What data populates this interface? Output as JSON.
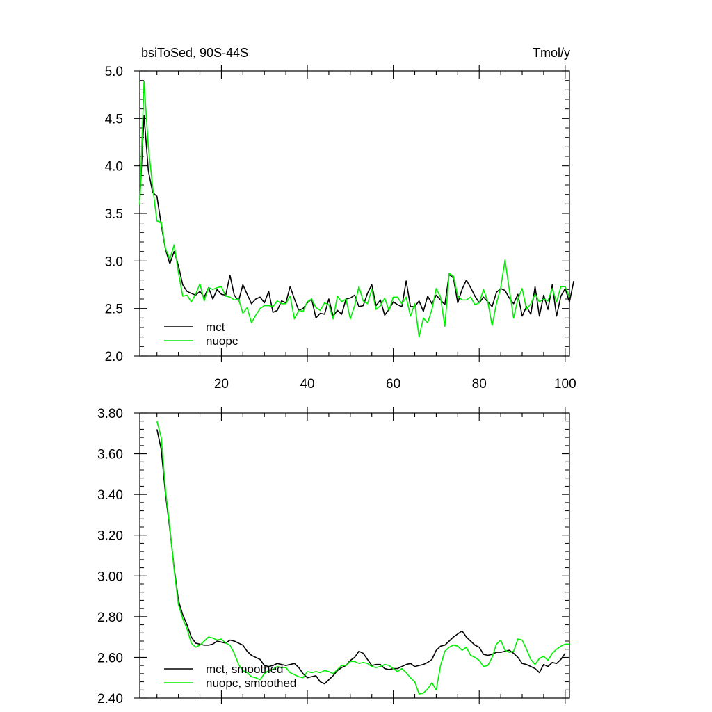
{
  "chart_data": [
    {
      "type": "line",
      "title": "bsiToSed, 90S-44S",
      "units": "Tmol/y",
      "xlim": [
        1,
        101
      ],
      "ylim": [
        2.0,
        5.0
      ],
      "x_ticks": [
        20,
        40,
        60,
        80,
        100
      ],
      "y_ticks": [
        "2.0",
        "2.5",
        "3.0",
        "3.5",
        "4.0",
        "4.5",
        "5.0"
      ],
      "legend_position": "bottom-left",
      "series": [
        {
          "name": "mct",
          "color": "#000000",
          "x_start": 1,
          "values": [
            3.64,
            4.53,
            3.95,
            3.72,
            3.68,
            3.38,
            3.12,
            2.97,
            3.1,
            2.95,
            2.75,
            2.68,
            2.66,
            2.64,
            2.68,
            2.62,
            2.72,
            2.6,
            2.7,
            2.65,
            2.64,
            2.85,
            2.64,
            2.58,
            2.75,
            2.65,
            2.55,
            2.6,
            2.62,
            2.56,
            2.68,
            2.46,
            2.48,
            2.58,
            2.56,
            2.73,
            2.6,
            2.48,
            2.5,
            2.56,
            2.6,
            2.4,
            2.45,
            2.44,
            2.6,
            2.42,
            2.48,
            2.44,
            2.6,
            2.61,
            2.64,
            2.52,
            2.53,
            2.66,
            2.75,
            2.53,
            2.59,
            2.43,
            2.49,
            2.57,
            2.54,
            2.52,
            2.79,
            2.52,
            2.52,
            2.58,
            2.47,
            2.63,
            2.55,
            2.64,
            2.59,
            2.54,
            2.86,
            2.82,
            2.56,
            2.7,
            2.8,
            2.72,
            2.63,
            2.56,
            2.62,
            2.57,
            2.52,
            2.67,
            2.71,
            2.69,
            2.61,
            2.55,
            2.65,
            2.42,
            2.52,
            2.44,
            2.73,
            2.42,
            2.64,
            2.49,
            2.75,
            2.42,
            2.63,
            2.71,
            2.57,
            2.79
          ]
        },
        {
          "name": "nuopc",
          "color": "#00ee00",
          "x_start": 1,
          "values": [
            3.59,
            4.89,
            4.2,
            3.78,
            3.42,
            3.41,
            3.13,
            3.02,
            3.17,
            2.88,
            2.63,
            2.64,
            2.57,
            2.65,
            2.76,
            2.58,
            2.72,
            2.7,
            2.72,
            2.73,
            2.63,
            2.62,
            2.59,
            2.6,
            2.45,
            2.51,
            2.35,
            2.43,
            2.5,
            2.53,
            2.53,
            2.52,
            2.58,
            2.55,
            2.55,
            2.63,
            2.39,
            2.48,
            2.47,
            2.57,
            2.6,
            2.51,
            2.48,
            2.56,
            2.54,
            2.39,
            2.63,
            2.57,
            2.6,
            2.39,
            2.53,
            2.73,
            2.58,
            2.55,
            2.7,
            2.49,
            2.53,
            2.61,
            2.48,
            2.62,
            2.62,
            2.55,
            2.62,
            2.42,
            2.55,
            2.2,
            2.4,
            2.35,
            2.49,
            2.71,
            2.62,
            2.31,
            2.87,
            2.84,
            2.63,
            2.59,
            2.59,
            2.62,
            2.54,
            2.56,
            2.7,
            2.57,
            2.32,
            2.55,
            2.72,
            3.01,
            2.7,
            2.4,
            2.6,
            2.71,
            2.49,
            2.55,
            2.65,
            2.57,
            2.6,
            2.58,
            2.71,
            2.57,
            2.73,
            2.73,
            2.62
          ]
        }
      ]
    },
    {
      "type": "line",
      "xlim": [
        1,
        101
      ],
      "ylim": [
        2.4,
        3.8
      ],
      "y_ticks": [
        "2.40",
        "2.60",
        "2.80",
        "3.00",
        "3.20",
        "3.40",
        "3.60",
        "3.80"
      ],
      "legend_position": "bottom-left",
      "series": [
        {
          "name": "mct, smoothed",
          "color": "#000000",
          "x_start": 5,
          "values": [
            3.72,
            3.62,
            3.4,
            3.23,
            3.04,
            2.88,
            2.81,
            2.76,
            2.7,
            2.67,
            2.665,
            2.66,
            2.66,
            2.665,
            2.68,
            2.675,
            2.67,
            2.685,
            2.68,
            2.67,
            2.66,
            2.63,
            2.61,
            2.6,
            2.59,
            2.56,
            2.555,
            2.56,
            2.57,
            2.565,
            2.56,
            2.565,
            2.57,
            2.55,
            2.52,
            2.5,
            2.505,
            2.51,
            2.48,
            2.47,
            2.49,
            2.51,
            2.535,
            2.55,
            2.56,
            2.585,
            2.6,
            2.63,
            2.62,
            2.59,
            2.56,
            2.565,
            2.565,
            2.545,
            2.54,
            2.545,
            2.545,
            2.555,
            2.565,
            2.57,
            2.555,
            2.56,
            2.565,
            2.575,
            2.59,
            2.635,
            2.655,
            2.66,
            2.68,
            2.7,
            2.715,
            2.73,
            2.7,
            2.68,
            2.66,
            2.65,
            2.615,
            2.61,
            2.615,
            2.625,
            2.625,
            2.63,
            2.635,
            2.62,
            2.6,
            2.57,
            2.565,
            2.555,
            2.545,
            2.525,
            2.565,
            2.555,
            2.575,
            2.57,
            2.59,
            2.62
          ]
        },
        {
          "name": "nuopc, smoothed",
          "color": "#00ee00",
          "x_start": 5,
          "values": [
            3.76,
            3.68,
            3.42,
            3.24,
            3.03,
            2.86,
            2.79,
            2.74,
            2.67,
            2.65,
            2.66,
            2.68,
            2.7,
            2.695,
            2.685,
            2.69,
            2.67,
            2.66,
            2.62,
            2.565,
            2.535,
            2.525,
            2.505,
            2.5,
            2.49,
            2.52,
            2.535,
            2.54,
            2.555,
            2.55,
            2.55,
            2.525,
            2.515,
            2.505,
            2.5,
            2.53,
            2.525,
            2.53,
            2.525,
            2.535,
            2.53,
            2.52,
            2.54,
            2.56,
            2.56,
            2.58,
            2.58,
            2.57,
            2.575,
            2.57,
            2.555,
            2.55,
            2.555,
            2.565,
            2.56,
            2.545,
            2.53,
            2.545,
            2.525,
            2.5,
            2.48,
            2.42,
            2.425,
            2.445,
            2.475,
            2.44,
            2.56,
            2.63,
            2.65,
            2.66,
            2.655,
            2.635,
            2.65,
            2.61,
            2.6,
            2.585,
            2.555,
            2.56,
            2.6,
            2.665,
            2.685,
            2.635,
            2.625,
            2.63,
            2.69,
            2.685,
            2.64,
            2.59,
            2.565,
            2.595,
            2.605,
            2.585,
            2.62,
            2.64,
            2.655,
            2.665,
            2.665
          ]
        }
      ]
    }
  ]
}
